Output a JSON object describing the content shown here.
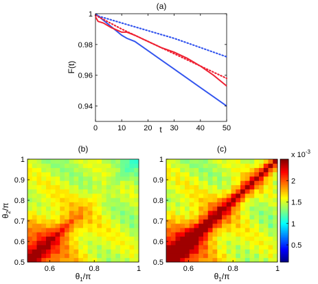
{
  "chart_data": [
    {
      "type": "line",
      "title": "(a)",
      "xlabel": "t",
      "ylabel": "F(t)",
      "xlim": [
        0,
        50
      ],
      "ylim": [
        0.93,
        1.0
      ],
      "xticks": [
        0,
        10,
        20,
        30,
        40,
        50
      ],
      "yticks": [
        0.94,
        0.96,
        0.98,
        1
      ],
      "ytick_labels": [
        "0.94",
        "0.96",
        "0.98",
        "1"
      ],
      "grid": false,
      "series": [
        {
          "color": "#3355ee",
          "style": "solid",
          "x": [
            0,
            5,
            10,
            12,
            15,
            20,
            25,
            30,
            35,
            40,
            45,
            50
          ],
          "y": [
            1.0,
            0.993,
            0.986,
            0.984,
            0.982,
            0.976,
            0.97,
            0.964,
            0.958,
            0.952,
            0.946,
            0.94
          ]
        },
        {
          "color": "#3355ee",
          "style": "dotted",
          "x": [
            0,
            10,
            20,
            30,
            40,
            50
          ],
          "y": [
            0.999,
            0.994,
            0.989,
            0.984,
            0.978,
            0.972
          ]
        },
        {
          "color": "#ee2233",
          "style": "solid",
          "x": [
            0,
            1,
            3,
            6,
            10,
            12,
            15,
            20,
            25,
            30,
            35,
            40,
            45,
            50
          ],
          "y": [
            0.998,
            0.995,
            0.994,
            0.991,
            0.988,
            0.988,
            0.986,
            0.982,
            0.978,
            0.975,
            0.971,
            0.966,
            0.96,
            0.953
          ]
        },
        {
          "color": "#ee2233",
          "style": "dotted",
          "x": [
            0,
            10,
            20,
            30,
            40,
            50
          ],
          "y": [
            0.999,
            0.99,
            0.982,
            0.974,
            0.966,
            0.958
          ]
        }
      ]
    },
    {
      "type": "heatmap",
      "title": "(b)",
      "xlabel": "θ1/π",
      "ylabel": "θ2/π",
      "xlim": [
        0.5,
        1.0
      ],
      "ylim": [
        0.5,
        1.0
      ],
      "xticks": [
        0.6,
        0.8,
        1.0
      ],
      "xtick_labels": [
        "0.6",
        "0.8",
        "1"
      ],
      "yticks": [
        0.5,
        0.6,
        0.7,
        0.8,
        0.9,
        1.0
      ],
      "ytick_labels": [
        "0.5",
        "0.6",
        "0.7",
        "0.8",
        "0.9",
        "1"
      ],
      "grid_size": 24,
      "model": {
        "low": 0.12,
        "diag_drop": 0.55,
        "width": 0.04,
        "diag_base": 1.05,
        "diag_slope": 0.5,
        "pert": 0.04
      },
      "value_scale": "x 10^-3"
    },
    {
      "type": "heatmap",
      "title": "(c)",
      "xlabel": "θ1/π",
      "ylabel": "",
      "xlim": [
        0.5,
        1.0
      ],
      "ylim": [
        0.5,
        1.0
      ],
      "xticks": [
        0.6,
        0.8,
        1.0
      ],
      "xtick_labels": [
        "0.6",
        "0.8",
        "1"
      ],
      "yticks": [
        0.5,
        0.6,
        0.7,
        0.8,
        0.9,
        1.0
      ],
      "ytick_labels": [
        "0.5",
        "0.6",
        "0.7",
        "0.8",
        "0.9",
        "1"
      ],
      "grid_size": 24,
      "model": {
        "low": 0.1,
        "diag_drop": 0.0,
        "width": 0.04,
        "diag_base": 1.1,
        "diag_slope": 1.2,
        "pert": 0.05
      },
      "value_scale": "x 10^-3"
    }
  ],
  "colorbar": {
    "range": [
      0.1,
      2.5
    ],
    "ticks": [
      0.5,
      1,
      1.5,
      2
    ],
    "tick_labels": [
      "0.5",
      "1",
      "1.5",
      "2"
    ],
    "multiplier_label": "x 10",
    "multiplier_exponent": "-3",
    "colormap": "jet"
  }
}
